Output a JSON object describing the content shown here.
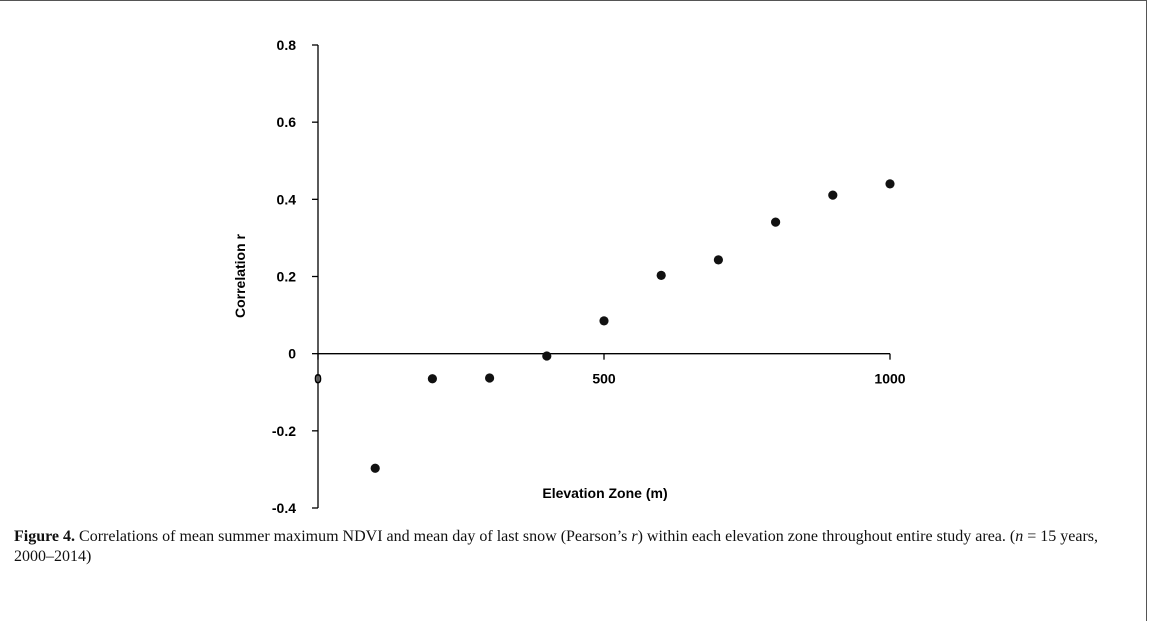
{
  "chart_data": {
    "type": "scatter",
    "xlabel": "Elevation Zone (m)",
    "ylabel": "Correlation r",
    "xlim": [
      0,
      1000
    ],
    "ylim": [
      -0.4,
      0.8
    ],
    "x_ticks": [
      0,
      500,
      1000
    ],
    "y_ticks": [
      -0.4,
      -0.2,
      0,
      0.2,
      0.4,
      0.6,
      0.8
    ],
    "y_tick_labels": [
      "-0.4",
      "-0.2",
      "0",
      "0.2",
      "0.4",
      "0.6",
      "0.8"
    ],
    "grid": false,
    "points": [
      {
        "x": 100,
        "y": -0.297
      },
      {
        "x": 200,
        "y": -0.065
      },
      {
        "x": 300,
        "y": -0.063
      },
      {
        "x": 400,
        "y": -0.006
      },
      {
        "x": 500,
        "y": 0.085
      },
      {
        "x": 600,
        "y": 0.203
      },
      {
        "x": 700,
        "y": 0.243
      },
      {
        "x": 800,
        "y": 0.341
      },
      {
        "x": 900,
        "y": 0.411
      },
      {
        "x": 1000,
        "y": 0.44
      }
    ],
    "marker_color": "#111111"
  },
  "caption": {
    "label": "Figure 4.",
    "text_part1": " Correlations of mean summer maximum NDVI and mean day of last snow (Pearson’s ",
    "r_symbol": "r",
    "text_part2": ") within each elevation zone throughout entire study area. (",
    "n_symbol": "n",
    "text_part3": " = 15 years, 2000–2014)"
  }
}
